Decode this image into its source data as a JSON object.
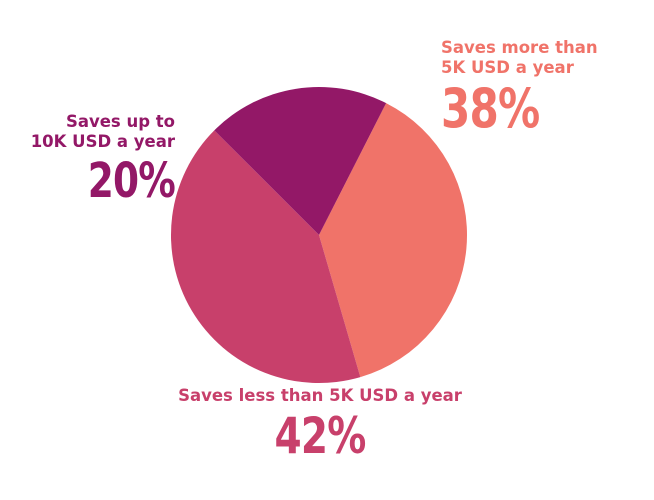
{
  "chart_data": {
    "type": "pie",
    "slices": [
      {
        "label": "Saves more than 5K USD a year",
        "value": 38,
        "display": "38%",
        "color": "#f07369"
      },
      {
        "label": "Saves less than 5K USD a year",
        "value": 42,
        "display": "42%",
        "color": "#c8406b"
      },
      {
        "label": "Saves up to 10K USD a year",
        "value": 20,
        "display": "20%",
        "color": "#931867"
      }
    ]
  },
  "labels": {
    "more": {
      "line1": "Saves more than",
      "line2": "5K USD a year",
      "pct": "38%"
    },
    "less": {
      "line1": "Saves less than 5K USD a year",
      "pct": "42%"
    },
    "upto": {
      "line1": "Saves up to",
      "line2": "10K USD a year",
      "pct": "20%"
    }
  }
}
